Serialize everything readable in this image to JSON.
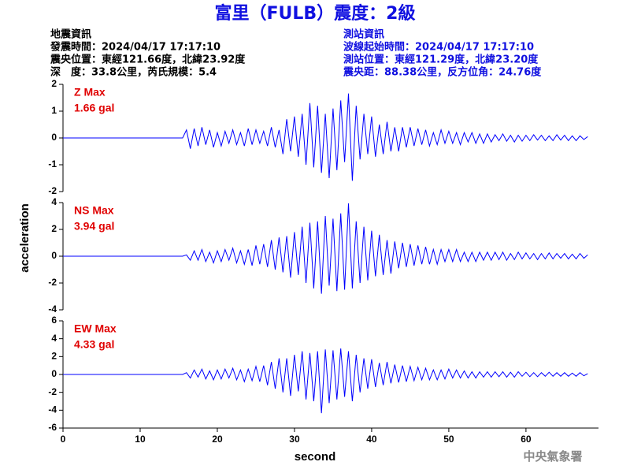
{
  "header": {
    "title": "富里（FULB）震度：2級",
    "left": [
      "地震資訊",
      "發震時間：2024/04/17 17:17:10",
      "震央位置：東經121.66度，北緯23.92度",
      "深　度：33.8公里，芮氏規模：5.4"
    ],
    "right": [
      "測站資訊",
      "波線起始時間：2024/04/17 17:17:10",
      "測站位置：東經121.29度，北緯23.20度",
      "震央距：88.38公里，反方位角：24.76度"
    ]
  },
  "ylabel": "acceleration",
  "xlabel": "second",
  "footer": "中央氣象署",
  "chart_data": [
    {
      "type": "line",
      "label": "Z Max",
      "max_label": "1.66 gal",
      "color": "#0000ff",
      "ylim": [
        -2,
        2
      ],
      "yticks": [
        -2,
        -1,
        0,
        1,
        2
      ],
      "xlim": [
        0,
        69.4
      ],
      "x": [
        0,
        15.5,
        16,
        16.5,
        17,
        17.5,
        18,
        18.5,
        19,
        19.5,
        20,
        20.5,
        21,
        21.5,
        22,
        22.5,
        23,
        23.5,
        24,
        24.5,
        25,
        25.5,
        26,
        26.5,
        27,
        27.5,
        28,
        28.5,
        29,
        29.5,
        30,
        30.5,
        31,
        31.5,
        32,
        32.5,
        33,
        33.5,
        34,
        34.5,
        35,
        35.5,
        36,
        36.5,
        37,
        37.5,
        38,
        38.5,
        39,
        39.5,
        40,
        40.5,
        41,
        41.5,
        42,
        42.5,
        43,
        43.5,
        44,
        44.5,
        45,
        45.5,
        46,
        46.5,
        47,
        47.5,
        48,
        48.5,
        49,
        49.5,
        50,
        50.5,
        51,
        51.5,
        52,
        52.5,
        53,
        53.5,
        54,
        54.5,
        55,
        55.5,
        56,
        56.5,
        57,
        57.5,
        58,
        58.5,
        59,
        59.5,
        60,
        60.5,
        61,
        61.5,
        62,
        62.5,
        63,
        63.5,
        64,
        64.5,
        65,
        65.5,
        66,
        66.5,
        67,
        67.5,
        68
      ],
      "values": [
        0,
        0,
        0.3,
        -0.4,
        0.35,
        -0.3,
        0.4,
        -0.25,
        0.3,
        -0.35,
        0.2,
        -0.3,
        0.25,
        -0.2,
        0.3,
        -0.25,
        0.2,
        -0.3,
        0.35,
        -0.25,
        0.3,
        -0.2,
        0.25,
        -0.3,
        0.4,
        -0.35,
        0.3,
        -0.6,
        0.7,
        -0.5,
        0.8,
        -0.7,
        0.9,
        -1.0,
        1.3,
        -1.1,
        1.2,
        -1.3,
        0.9,
        -1.5,
        1.1,
        -1.2,
        1.4,
        -0.9,
        1.66,
        -1.6,
        1.2,
        -0.8,
        0.9,
        -0.6,
        0.8,
        -0.7,
        0.5,
        -0.6,
        0.6,
        -0.5,
        0.4,
        -0.5,
        0.4,
        -0.35,
        0.4,
        -0.3,
        0.35,
        -0.25,
        0.3,
        -0.3,
        0.2,
        -0.25,
        0.3,
        -0.2,
        0.25,
        -0.2,
        0.2,
        -0.25,
        0.2,
        -0.15,
        0.2,
        -0.2,
        0.15,
        -0.2,
        0.15,
        -0.15,
        0.12,
        -0.1,
        0.15,
        -0.12,
        0.1,
        -0.15,
        0.1,
        -0.12,
        0.1,
        -0.1,
        0.12,
        -0.08,
        0.1,
        -0.1,
        0.08,
        -0.1,
        0.12,
        -0.08,
        0.1,
        -0.1,
        0.08,
        -0.1,
        0.08,
        -0.06,
        0.05
      ]
    },
    {
      "type": "line",
      "label": "NS Max",
      "max_label": "3.94 gal",
      "color": "#0000ff",
      "ylim": [
        -4,
        4
      ],
      "yticks": [
        -4,
        -2,
        0,
        2,
        4
      ],
      "xlim": [
        0,
        69.4
      ],
      "x": [
        0,
        15.5,
        16,
        16.5,
        17,
        17.5,
        18,
        18.5,
        19,
        19.5,
        20,
        20.5,
        21,
        21.5,
        22,
        22.5,
        23,
        23.5,
        24,
        24.5,
        25,
        25.5,
        26,
        26.5,
        27,
        27.5,
        28,
        28.5,
        29,
        29.5,
        30,
        30.5,
        31,
        31.5,
        32,
        32.5,
        33,
        33.5,
        34,
        34.5,
        35,
        35.5,
        36,
        36.5,
        37,
        37.5,
        38,
        38.5,
        39,
        39.5,
        40,
        40.5,
        41,
        41.5,
        42,
        42.5,
        43,
        43.5,
        44,
        44.5,
        45,
        45.5,
        46,
        46.5,
        47,
        47.5,
        48,
        48.5,
        49,
        49.5,
        50,
        50.5,
        51,
        51.5,
        52,
        52.5,
        53,
        53.5,
        54,
        54.5,
        55,
        55.5,
        56,
        56.5,
        57,
        57.5,
        58,
        58.5,
        59,
        59.5,
        60,
        60.5,
        61,
        61.5,
        62,
        62.5,
        63,
        63.5,
        64,
        64.5,
        65,
        65.5,
        66,
        66.5,
        67,
        67.5,
        68
      ],
      "values": [
        0,
        0,
        0.1,
        -0.3,
        0.4,
        -0.3,
        0.5,
        -0.4,
        0.3,
        -0.5,
        0.4,
        -0.4,
        0.5,
        -0.3,
        0.6,
        -0.5,
        0.4,
        -0.6,
        0.5,
        -0.7,
        0.8,
        -0.6,
        0.9,
        -0.8,
        1.2,
        -1.0,
        1.4,
        -1.2,
        1.5,
        -1.6,
        1.8,
        -1.4,
        2.2,
        -2.0,
        2.5,
        -2.4,
        2.6,
        -2.8,
        3.0,
        -2.2,
        2.8,
        -2.6,
        3.2,
        -2.5,
        3.94,
        -2.4,
        2.6,
        -2.0,
        2.2,
        -1.8,
        1.9,
        -1.5,
        1.6,
        -1.4,
        1.2,
        -1.3,
        1.1,
        -0.9,
        1.0,
        -0.8,
        0.9,
        -0.7,
        0.8,
        -0.6,
        0.7,
        -0.6,
        0.5,
        -0.6,
        0.5,
        -0.4,
        0.5,
        -0.4,
        0.5,
        -0.4,
        0.3,
        -0.4,
        0.3,
        -0.4,
        0.3,
        -0.3,
        0.3,
        -0.3,
        0.3,
        -0.25,
        0.3,
        -0.3,
        0.2,
        -0.25,
        0.3,
        -0.2,
        0.25,
        -0.2,
        0.2,
        -0.25,
        0.2,
        -0.2,
        0.25,
        -0.2,
        0.2,
        -0.15,
        0.2,
        -0.2,
        0.15,
        -0.2,
        0.2,
        -0.15,
        0.1
      ]
    },
    {
      "type": "line",
      "label": "EW Max",
      "max_label": "4.33 gal",
      "color": "#0000ff",
      "ylim": [
        -6,
        6
      ],
      "yticks": [
        -6,
        -4,
        -2,
        0,
        2,
        4,
        6
      ],
      "xlim": [
        0,
        69.4
      ],
      "xticks": [
        0,
        10,
        20,
        30,
        40,
        50,
        60
      ],
      "x": [
        0,
        15.5,
        16,
        16.5,
        17,
        17.5,
        18,
        18.5,
        19,
        19.5,
        20,
        20.5,
        21,
        21.5,
        22,
        22.5,
        23,
        23.5,
        24,
        24.5,
        25,
        25.5,
        26,
        26.5,
        27,
        27.5,
        28,
        28.5,
        29,
        29.5,
        30,
        30.5,
        31,
        31.5,
        32,
        32.5,
        33,
        33.5,
        34,
        34.5,
        35,
        35.5,
        36,
        36.5,
        37,
        37.5,
        38,
        38.5,
        39,
        39.5,
        40,
        40.5,
        41,
        41.5,
        42,
        42.5,
        43,
        43.5,
        44,
        44.5,
        45,
        45.5,
        46,
        46.5,
        47,
        47.5,
        48,
        48.5,
        49,
        49.5,
        50,
        50.5,
        51,
        51.5,
        52,
        52.5,
        53,
        53.5,
        54,
        54.5,
        55,
        55.5,
        56,
        56.5,
        57,
        57.5,
        58,
        58.5,
        59,
        59.5,
        60,
        60.5,
        61,
        61.5,
        62,
        62.5,
        63,
        63.5,
        64,
        64.5,
        65,
        65.5,
        66,
        66.5,
        67,
        67.5,
        68
      ],
      "values": [
        0,
        0,
        0.2,
        -0.4,
        0.5,
        -0.3,
        0.6,
        -0.5,
        0.4,
        -0.6,
        0.5,
        -0.5,
        0.6,
        -0.4,
        0.7,
        -0.6,
        0.5,
        -0.8,
        0.6,
        -0.7,
        0.9,
        -0.8,
        1.0,
        -1.2,
        1.4,
        -1.6,
        1.8,
        -2.0,
        1.8,
        -2.4,
        2.2,
        -1.9,
        2.6,
        -2.8,
        2.4,
        -3.0,
        2.6,
        -4.33,
        2.8,
        -3.2,
        2.7,
        -2.8,
        2.9,
        -2.5,
        2.6,
        -3.0,
        2.2,
        -2.0,
        1.8,
        -1.6,
        1.7,
        -1.4,
        1.3,
        -1.2,
        1.4,
        -1.0,
        1.1,
        -0.9,
        1.0,
        -0.8,
        0.9,
        -0.7,
        0.8,
        -0.6,
        0.7,
        -0.6,
        0.5,
        -0.6,
        0.5,
        -0.5,
        0.6,
        -0.4,
        0.5,
        -0.4,
        0.4,
        -0.4,
        0.3,
        -0.4,
        0.3,
        -0.3,
        0.3,
        -0.3,
        0.3,
        -0.25,
        0.3,
        -0.3,
        0.25,
        -0.3,
        0.3,
        -0.2,
        0.25,
        -0.25,
        0.2,
        -0.25,
        0.2,
        -0.2,
        0.25,
        -0.2,
        0.2,
        -0.2,
        0.2,
        -0.2,
        0.15,
        -0.2,
        0.2,
        -0.15,
        0.1
      ]
    }
  ]
}
